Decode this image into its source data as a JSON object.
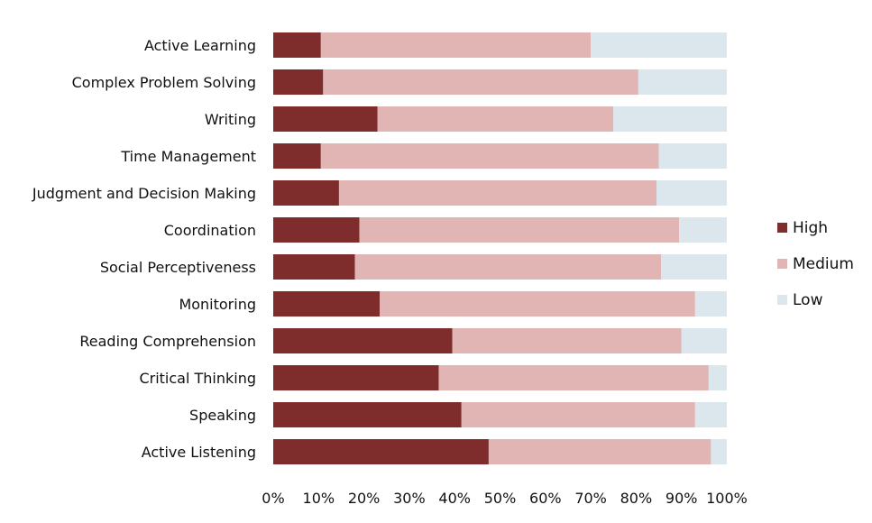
{
  "chart_data": {
    "type": "bar",
    "orientation": "horizontal",
    "stacked": "percent",
    "categories": [
      "Active Learning",
      "Complex Problem Solving",
      "Writing",
      "Time Management",
      "Judgment and Decision Making",
      "Coordination",
      "Social Perceptiveness",
      "Monitoring",
      "Reading Comprehension",
      "Critical Thinking",
      "Speaking",
      "Active Listening"
    ],
    "series": [
      {
        "name": "High",
        "color": "#7f2c2c",
        "values": [
          10.5,
          11,
          23,
          10.5,
          14.5,
          19,
          18,
          23.5,
          39.5,
          36.5,
          41.5,
          47.5
        ]
      },
      {
        "name": "Medium",
        "color": "#e0b5b3",
        "values": [
          59.5,
          69.5,
          52,
          74.5,
          70,
          70.5,
          67.5,
          69.5,
          50.5,
          59.5,
          51.5,
          49
        ]
      },
      {
        "name": "Low",
        "color": "#dce6ed",
        "values": [
          30,
          19.5,
          25,
          15,
          15.5,
          10.5,
          14.5,
          7,
          10,
          4,
          7,
          3.5
        ]
      }
    ],
    "x_ticks": [
      "0%",
      "10%",
      "20%",
      "30%",
      "40%",
      "50%",
      "60%",
      "70%",
      "80%",
      "90%",
      "100%"
    ],
    "xlim": [
      0,
      100
    ],
    "grid": false,
    "legend_position": "right"
  }
}
